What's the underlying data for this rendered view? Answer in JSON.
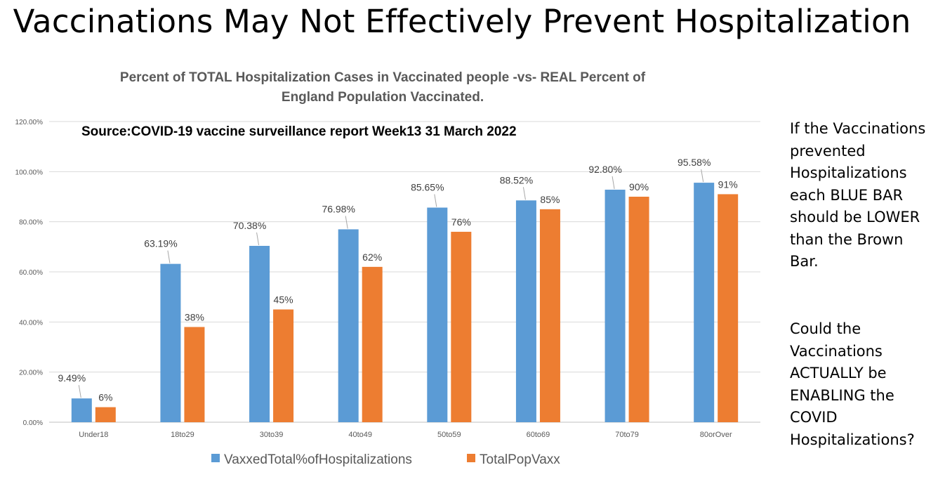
{
  "page_title": "Vaccinations May Not Effectively Prevent Hospitalization",
  "side_notes": {
    "note_1": "If the Vaccinations prevented Hospitalizations each BLUE BAR should be LOWER than the Brown Bar.",
    "note_2": "Could the Vaccinations ACTUALLY be ENABLING the COVID Hospitalizations?"
  },
  "colors": {
    "blue": "#5b9bd5",
    "orange": "#ed7d31",
    "grid": "#d9d9d9",
    "title_gray": "#595959"
  },
  "chart_data": {
    "type": "bar",
    "title_line_1": "Percent of TOTAL Hospitalization Cases  in Vaccinated people   -vs-  REAL Percent of",
    "title_line_2": "England Population Vaccinated.",
    "annotation": "Source:COVID-19 vaccine surveillance report Week13  31 March 2022",
    "xlabel": "",
    "ylabel": "",
    "ylim": [
      0,
      120
    ],
    "y_ticks": [
      0,
      20,
      40,
      60,
      80,
      100,
      120
    ],
    "y_tick_labels": [
      "0.00%",
      "20.00%",
      "40.00%",
      "60.00%",
      "80.00%",
      "100.00%",
      "120.00%"
    ],
    "grid": true,
    "legend_position": "bottom",
    "categories": [
      "Under18",
      "18to29",
      "30to39",
      "40to49",
      "50to59",
      "60to69",
      "70to79",
      "80orOver"
    ],
    "series": [
      {
        "name": "VaxxedTotal%ofHospitalizations",
        "color": "#5b9bd5",
        "values": [
          9.49,
          63.19,
          70.38,
          76.98,
          85.65,
          88.52,
          92.8,
          95.58
        ],
        "labels": [
          "9.49%",
          "63.19%",
          "70.38%",
          "76.98%",
          "85.65%",
          "88.52%",
          "92.80%",
          "95.58%"
        ]
      },
      {
        "name": "TotalPopVaxx",
        "color": "#ed7d31",
        "values": [
          6,
          38,
          45,
          62,
          76,
          85,
          90,
          91
        ],
        "labels": [
          "6%",
          "38%",
          "45%",
          "62%",
          "76%",
          "85%",
          "90%",
          "91%"
        ]
      }
    ]
  }
}
